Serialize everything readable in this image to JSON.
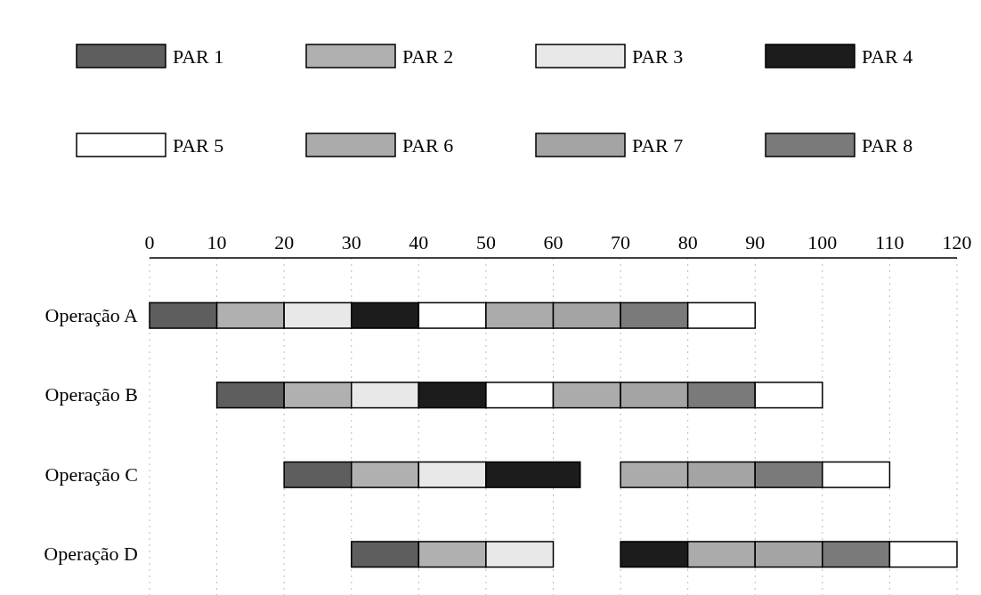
{
  "chart_data": {
    "type": "bar",
    "orientation": "horizontal",
    "categories": [
      "Operação A",
      "Operação B",
      "Operação C",
      "Operação D"
    ],
    "xlim": [
      0,
      120
    ],
    "xticks": [
      0,
      10,
      20,
      30,
      40,
      50,
      60,
      70,
      80,
      90,
      100,
      110,
      120
    ],
    "grid": "x",
    "legend": "top",
    "series": [
      {
        "name": "PAR 1",
        "color": "#5e5e5e",
        "base": [
          0,
          10,
          20,
          30
        ],
        "values": [
          10,
          10,
          10,
          10
        ]
      },
      {
        "name": "PAR 2",
        "color": "#b0b0b0",
        "base": [
          10,
          20,
          30,
          40
        ],
        "values": [
          10,
          10,
          10,
          10
        ]
      },
      {
        "name": "PAR 3",
        "color": "#e8e8e8",
        "base": [
          20,
          30,
          40,
          50
        ],
        "values": [
          10,
          10,
          10,
          10
        ]
      },
      {
        "name": "PAR 4",
        "color": "#1c1c1c",
        "base": [
          30,
          40,
          50,
          70
        ],
        "values": [
          10,
          10,
          14,
          10
        ]
      },
      {
        "name": "PAR 5",
        "color": "#ffffff",
        "base": [
          40,
          50,
          null,
          null
        ],
        "values": [
          10,
          10,
          null,
          null
        ]
      },
      {
        "name": "PAR 6",
        "color": "#ababab",
        "base": [
          50,
          60,
          70,
          80
        ],
        "values": [
          10,
          10,
          10,
          10
        ]
      },
      {
        "name": "PAR 7",
        "color": "#a4a4a4",
        "base": [
          60,
          70,
          80,
          90
        ],
        "values": [
          10,
          10,
          10,
          10
        ]
      },
      {
        "name": "PAR 8",
        "color": "#7a7a7a",
        "base": [
          70,
          80,
          90,
          100
        ],
        "values": [
          10,
          10,
          10,
          10
        ]
      },
      {
        "color": "#ffffff",
        "base": [
          80,
          90,
          100,
          110
        ],
        "values": [
          10,
          10,
          10,
          10
        ]
      }
    ]
  }
}
